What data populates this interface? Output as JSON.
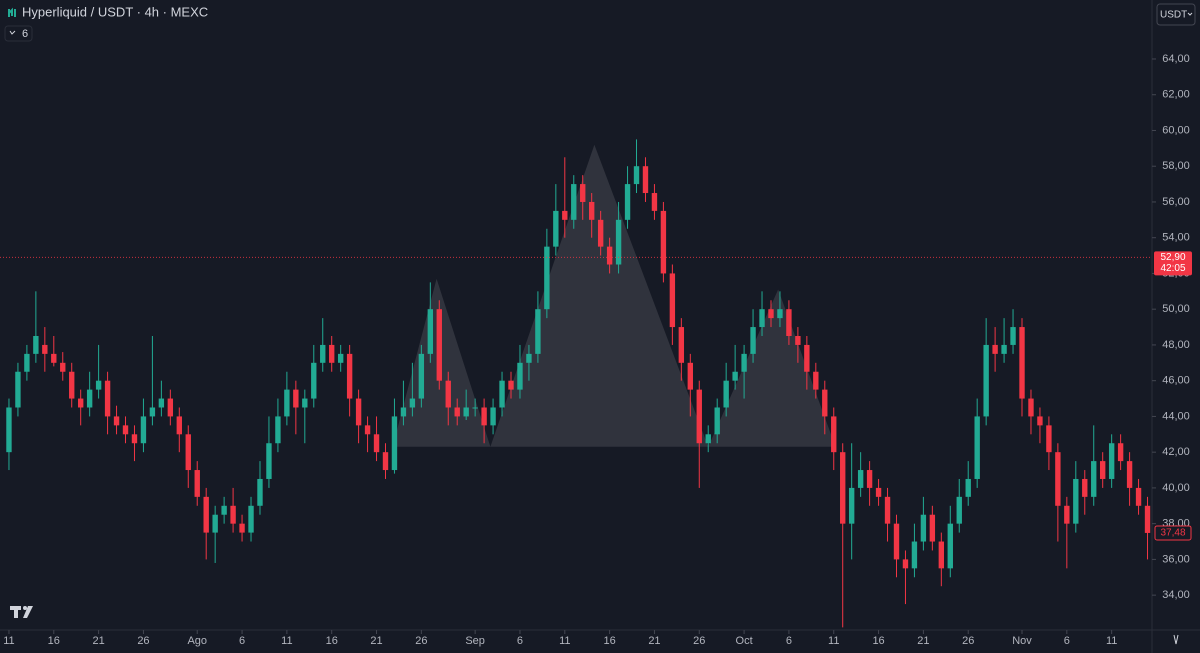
{
  "chart_data": {
    "type": "candlestick",
    "title": "Hyperliquid / USDT · 4h · MEXC",
    "indicator_count": "6",
    "currency_button": "USDT",
    "up_color": "#22ab94",
    "down_color": "#f23645",
    "grid": false,
    "x": [
      0,
      1,
      2,
      3,
      4,
      5,
      6,
      7,
      8,
      9,
      10,
      11,
      12,
      13,
      14,
      15,
      16,
      17,
      18,
      19,
      20,
      21,
      22,
      23,
      24,
      25,
      26,
      27,
      28,
      29,
      30,
      31,
      32,
      33,
      34,
      35,
      36,
      37,
      38,
      39,
      40,
      41,
      42,
      43,
      44,
      45,
      46,
      47,
      48,
      49,
      50,
      51,
      52,
      53,
      54,
      55,
      56,
      57,
      58,
      59,
      60,
      61,
      62,
      63,
      64,
      65,
      66,
      67,
      68,
      69,
      70,
      71,
      72,
      73,
      74,
      75,
      76,
      77,
      78,
      79,
      80,
      81,
      82,
      83,
      84,
      85,
      86,
      87,
      88,
      89,
      90,
      91,
      92,
      93,
      94,
      95,
      96,
      97,
      98,
      99,
      100,
      101,
      102,
      103,
      104,
      105,
      106,
      107,
      108,
      109,
      110,
      111,
      112,
      113,
      114,
      115,
      116,
      117,
      118,
      119,
      120,
      121,
      122,
      123,
      124,
      125,
      126,
      127
    ],
    "open": [
      42,
      44.5,
      46.5,
      47.5,
      48,
      47.5,
      47,
      46.5,
      45,
      44.5,
      45.5,
      46,
      44,
      43.5,
      43,
      42.5,
      44,
      44.5,
      45,
      44,
      43,
      41,
      39.5,
      37.5,
      38.5,
      39,
      38,
      37.5,
      39,
      40.5,
      42.5,
      44,
      45.5,
      44.5,
      45,
      47,
      48,
      47,
      47.5,
      45,
      43.5,
      43,
      42,
      41,
      44,
      44.5,
      45,
      47.5,
      50,
      46,
      44.5,
      44,
      44.5,
      44.5,
      43.5,
      44.5,
      46,
      45.5,
      47,
      47.5,
      50,
      53.5,
      55.5,
      55,
      57,
      56,
      55,
      53.5,
      52.5,
      55,
      57,
      58,
      56.5,
      55.5,
      52,
      49,
      47,
      45.5,
      42.5,
      43,
      44.5,
      46,
      46.5,
      47.5,
      49,
      50,
      49.5,
      50,
      48.5,
      48,
      46.5,
      45.5,
      44,
      42,
      38,
      40,
      41,
      40,
      39.5,
      38,
      36,
      35.5,
      37,
      38.5,
      37,
      35.5,
      38,
      39.5,
      40.5,
      44,
      48,
      47.5,
      48,
      49,
      45,
      44,
      43.5,
      42,
      39,
      38,
      40.5,
      39.5,
      41.5,
      40.5,
      42.5,
      41.5,
      40,
      39
    ],
    "high": [
      45,
      47,
      48,
      51,
      49,
      48.5,
      47.6,
      47,
      45.5,
      46.5,
      48,
      46.5,
      44.6,
      44,
      43.5,
      45,
      48.5,
      46,
      45.5,
      44.5,
      43.5,
      41.5,
      40,
      39,
      39.5,
      40,
      38.5,
      39.5,
      41.5,
      44,
      45,
      46.5,
      46,
      45.5,
      48,
      49.5,
      48.5,
      48,
      48,
      45.5,
      44,
      44,
      42.5,
      45,
      46,
      47,
      48,
      51.5,
      50.5,
      46.5,
      45,
      45.5,
      45,
      45,
      45,
      46.5,
      46.5,
      48,
      48,
      51,
      54.5,
      57,
      58.5,
      57.5,
      57.5,
      56.5,
      55.5,
      54,
      56,
      58,
      59.5,
      58.5,
      57,
      56,
      52.5,
      49.5,
      47.5,
      46,
      43.5,
      45,
      47,
      48,
      48,
      50,
      51,
      50.5,
      51,
      50.5,
      49,
      48.5,
      47,
      46,
      44.5,
      42.5,
      42.5,
      42,
      41.5,
      40.5,
      40,
      38.5,
      36.5,
      38,
      39.5,
      39,
      37.5,
      39,
      40.5,
      41.5,
      45,
      49.5,
      49,
      49.5,
      50,
      49.5,
      45.5,
      44.5,
      44,
      42.5,
      39.5,
      41.5,
      41,
      43.5,
      42,
      43,
      43,
      42,
      40.5,
      39.5
    ],
    "low": [
      41,
      44,
      46,
      47,
      46.5,
      46.8,
      46,
      44.5,
      43.5,
      44,
      45,
      43,
      43,
      42.5,
      41.5,
      42,
      43.5,
      44,
      43.5,
      42,
      40,
      39,
      36,
      35.8,
      38,
      37.5,
      37,
      37,
      38.5,
      40,
      42,
      43.5,
      43,
      42.5,
      44.5,
      46.5,
      46.5,
      46.5,
      44,
      42.5,
      42,
      41.5,
      40.5,
      40.8,
      43.5,
      44,
      44.5,
      47,
      45.5,
      43.5,
      43.5,
      43.8,
      44,
      42.5,
      43,
      44,
      45,
      45,
      46,
      47,
      49.5,
      53,
      54,
      54.5,
      55,
      54,
      53,
      52,
      52,
      54.5,
      56.5,
      56,
      55,
      51.5,
      48,
      46,
      44,
      40,
      42,
      42.5,
      44,
      45.5,
      45,
      47,
      48.5,
      49,
      49,
      48,
      47,
      45.5,
      45,
      43,
      41,
      32.2,
      36,
      39.5,
      39,
      39,
      37,
      35,
      33.5,
      35,
      36.5,
      36.5,
      34.5,
      35,
      37.5,
      39,
      40,
      43.5,
      46.5,
      47,
      47.5,
      44,
      43,
      42.5,
      41,
      37,
      35.5,
      37.5,
      38.5,
      39,
      40,
      40,
      41,
      39,
      38.5,
      36
    ],
    "close": [
      44.5,
      46.5,
      47.5,
      48.5,
      47.5,
      47,
      46.5,
      45,
      44.5,
      45.5,
      46,
      44,
      43.5,
      43,
      42.5,
      44,
      44.5,
      45,
      44,
      43,
      41,
      39.5,
      37.5,
      38.5,
      39,
      38,
      37.5,
      39,
      40.5,
      42.5,
      44,
      45.5,
      44.5,
      45,
      47,
      48,
      47,
      47.5,
      45,
      43.5,
      43,
      42,
      41,
      44,
      44.5,
      45,
      47.5,
      50,
      46,
      44.5,
      44,
      44.5,
      44.5,
      43.5,
      44.5,
      46,
      45.5,
      47,
      47.5,
      50,
      53.5,
      55.5,
      55,
      57,
      56,
      55,
      53.5,
      52.5,
      55,
      57,
      58,
      56.5,
      55.5,
      52,
      49,
      47,
      45.5,
      42.5,
      43,
      44.5,
      46,
      46.5,
      47.5,
      49,
      50,
      49.5,
      50,
      48.5,
      48,
      46.5,
      45.5,
      44,
      42,
      38,
      40,
      41,
      40,
      39.5,
      38,
      36,
      35.5,
      37,
      38.5,
      37,
      35.5,
      38,
      39.5,
      40.5,
      44,
      48,
      47.5,
      48,
      49,
      45,
      44,
      43.5,
      42,
      39,
      38,
      40.5,
      39.5,
      41.5,
      40.5,
      42.5,
      41.5,
      40,
      39,
      37.48
    ],
    "last_close_label": "37,48",
    "current_price": 52.9,
    "current_price_label": "52,90",
    "countdown": "42:05",
    "pattern": {
      "color": "#3a3c45",
      "x": [
        42.8,
        47.7,
        53.7,
        65.3,
        78,
        85.8,
        92.2
      ],
      "y": [
        42.3,
        51.7,
        42.3,
        59.2,
        42.3,
        51.1,
        42.3
      ]
    },
    "xlim": [
      -1,
      127.5
    ],
    "ylim": [
      32.05,
      67.3
    ],
    "yticks": [
      {
        "value": 34,
        "label": "34,00"
      },
      {
        "value": 36,
        "label": "36,00"
      },
      {
        "value": 38,
        "label": "38,00"
      },
      {
        "value": 40,
        "label": "40,00"
      },
      {
        "value": 42,
        "label": "42,00"
      },
      {
        "value": 44,
        "label": "44,00"
      },
      {
        "value": 46,
        "label": "46,00"
      },
      {
        "value": 48,
        "label": "48,00"
      },
      {
        "value": 50,
        "label": "50,00"
      },
      {
        "value": 52,
        "label": "52,00"
      },
      {
        "value": 54,
        "label": "54,00"
      },
      {
        "value": 56,
        "label": "56,00"
      },
      {
        "value": 58,
        "label": "58,00"
      },
      {
        "value": 60,
        "label": "60,00"
      },
      {
        "value": 62,
        "label": "62,00"
      },
      {
        "value": 64,
        "label": "64,00"
      }
    ],
    "xticks": [
      {
        "value": 0,
        "label": "11"
      },
      {
        "value": 5,
        "label": "16"
      },
      {
        "value": 10,
        "label": "21"
      },
      {
        "value": 15,
        "label": "26"
      },
      {
        "value": 21,
        "label": "Ago"
      },
      {
        "value": 26,
        "label": "6"
      },
      {
        "value": 31,
        "label": "11"
      },
      {
        "value": 36,
        "label": "16"
      },
      {
        "value": 41,
        "label": "21"
      },
      {
        "value": 46,
        "label": "26"
      },
      {
        "value": 52,
        "label": "Sep"
      },
      {
        "value": 57,
        "label": "6"
      },
      {
        "value": 62,
        "label": "11"
      },
      {
        "value": 67,
        "label": "16"
      },
      {
        "value": 72,
        "label": "21"
      },
      {
        "value": 77,
        "label": "26"
      },
      {
        "value": 82,
        "label": "Oct"
      },
      {
        "value": 87,
        "label": "6"
      },
      {
        "value": 92,
        "label": "11"
      },
      {
        "value": 97,
        "label": "16"
      },
      {
        "value": 102,
        "label": "21"
      },
      {
        "value": 107,
        "label": "26"
      },
      {
        "value": 113,
        "label": "Nov"
      },
      {
        "value": 118,
        "label": "6"
      },
      {
        "value": 123,
        "label": "11"
      }
    ]
  }
}
